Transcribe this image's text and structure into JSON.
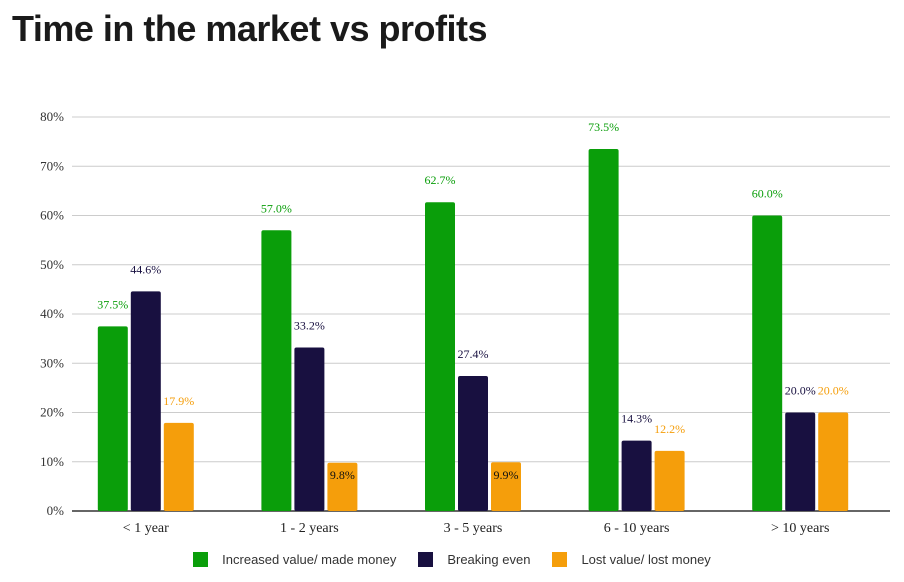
{
  "page": {
    "title": "Time in the market vs profits"
  },
  "chart_data": {
    "type": "bar",
    "categories": [
      "< 1 year",
      "1 - 2 years",
      "3 - 5 years",
      "6 - 10 years",
      "> 10 years"
    ],
    "series": [
      {
        "name": "Increased value/ made money",
        "color": "#0a9e0a",
        "values": [
          37.5,
          57.0,
          62.7,
          73.5,
          60.0
        ]
      },
      {
        "name": "Breaking even",
        "color": "#181040",
        "values": [
          44.6,
          33.2,
          27.4,
          14.3,
          20.0
        ]
      },
      {
        "name": "Lost value/ lost money",
        "color": "#f59e0b",
        "values": [
          17.9,
          9.8,
          9.9,
          12.2,
          20.0
        ]
      }
    ],
    "data_labels": [
      [
        "37.5%",
        "57.0%",
        "62.7%",
        "73.5%",
        "60.0%"
      ],
      [
        "44.6%",
        "33.2%",
        "27.4%",
        "14.3%",
        "20.0%"
      ],
      [
        "17.9%",
        "9.8%",
        "9.9%",
        "12.2%",
        "20.0%"
      ]
    ],
    "y_ticks": [
      "0%",
      "10%",
      "20%",
      "30%",
      "40%",
      "50%",
      "60%",
      "70%",
      "80%"
    ],
    "ylim": [
      0,
      80
    ],
    "grid": true,
    "legend_position": "bottom"
  }
}
